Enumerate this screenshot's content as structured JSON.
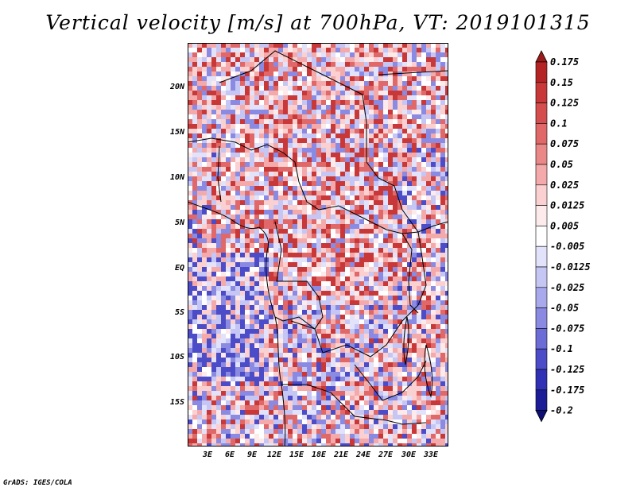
{
  "title": "Vertical velocity [m/s] at 700hPa, VT: 2019101315",
  "map": {
    "region": "Central Africa",
    "field": "Vertical velocity",
    "level": "700hPa",
    "units": "m/s",
    "lon_ticks": [
      "3E",
      "6E",
      "9E",
      "12E",
      "15E",
      "18E",
      "21E",
      "24E",
      "27E",
      "30E",
      "33E"
    ],
    "lat_ticks": [
      "20N",
      "15N",
      "10N",
      "5N",
      "EQ",
      "5S",
      "10S",
      "15S"
    ]
  },
  "colorbar": {
    "levels": [
      "0.175",
      "0.15",
      "0.125",
      "0.1",
      "0.075",
      "0.05",
      "0.025",
      "0.0125",
      "0.005",
      "-0.005",
      "-0.0125",
      "-0.025",
      "-0.05",
      "-0.075",
      "-0.1",
      "-0.125",
      "-0.175",
      "-0.2"
    ],
    "colors": [
      "#9a1a1a",
      "#b52424",
      "#c83838",
      "#d64d4d",
      "#e06868",
      "#ea8888",
      "#f4aaaa",
      "#fad0d0",
      "#fdeaea",
      "#ffffff",
      "#e2e2fa",
      "#c6c6f4",
      "#a8a8ec",
      "#8a8ae2",
      "#6c6cd6",
      "#4c4cc8",
      "#3030b4",
      "#1c1c96",
      "#0d0d78"
    ]
  },
  "footer": "GrADS: IGES/COLA"
}
